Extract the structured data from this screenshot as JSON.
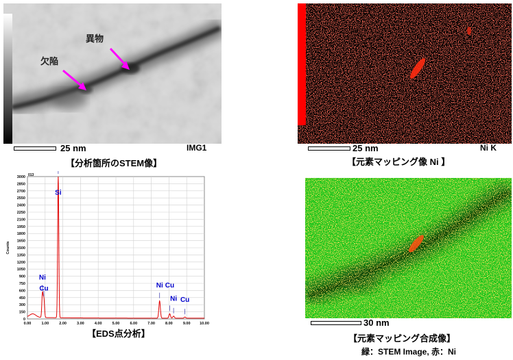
{
  "stem": {
    "labels": {
      "defect": "欠陥",
      "foreign": "異物"
    },
    "scale": "25 nm",
    "id": "IMG1",
    "caption": "【分析箇所のSTEM像】"
  },
  "nimap": {
    "scale": "25 nm",
    "element": "Ni K",
    "caption": "【元素マッピング像 Ni 】"
  },
  "eds": {
    "caption": "【EDS点分析】",
    "chart_data": {
      "type": "line",
      "title": "",
      "xlabel": "keV",
      "ylabel": "Counts",
      "xlim": [
        0.0,
        10.0
      ],
      "ylim": [
        0,
        3000
      ],
      "spectrum_id": "013",
      "yticks": [
        "0",
        "150",
        "300",
        "450",
        "600",
        "750",
        "900",
        "1050",
        "1200",
        "1350",
        "1500",
        "1650",
        "1800",
        "1950",
        "2100",
        "2250",
        "2400",
        "2550",
        "2700",
        "2850",
        "3000"
      ],
      "xticks": [
        "0.00",
        "1.00",
        "2.00",
        "3.00",
        "4.00",
        "5.00",
        "6.00",
        "7.00",
        "8.00",
        "9.00",
        "10.00"
      ],
      "peaks": [
        {
          "x": 0.85,
          "y": 540
        },
        {
          "x": 0.93,
          "y": 420
        },
        {
          "x": 1.74,
          "y": 3000
        },
        {
          "x": 7.47,
          "y": 380
        },
        {
          "x": 8.04,
          "y": 110
        },
        {
          "x": 8.26,
          "y": 60
        },
        {
          "x": 8.9,
          "y": 40
        }
      ],
      "annotations": [
        {
          "text": "Si",
          "x": 1.74,
          "y": 2620
        },
        {
          "text": "Ni",
          "x": 0.85,
          "y": 830
        },
        {
          "text": "Cu",
          "x": 0.93,
          "y": 600
        },
        {
          "text": "Ni",
          "x": 7.47,
          "y": 660
        },
        {
          "text": "Cu",
          "x": 8.04,
          "y": 660
        },
        {
          "text": "Ni",
          "x": 8.26,
          "y": 380
        },
        {
          "text": "Cu",
          "x": 8.9,
          "y": 360
        }
      ]
    }
  },
  "overlay": {
    "scale": "30 nm",
    "caption": "【元素マッピング合成像】",
    "legend": "緑：STEM Image, 赤：Ni"
  },
  "colors": {
    "arrow": "#ff00ff",
    "spectrum": "#e00000",
    "peak_label": "#0000cc",
    "map_bar": "#ff0000",
    "overlay_bg": "#22c61e"
  }
}
